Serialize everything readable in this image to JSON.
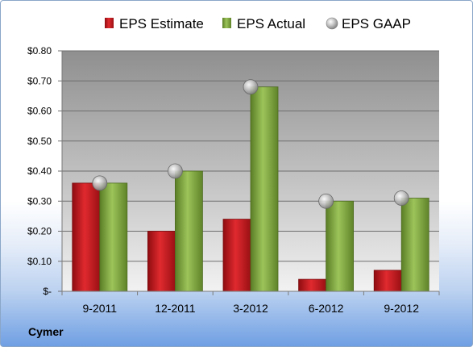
{
  "company": "Cymer",
  "colors": {
    "estimate": "#d9232a",
    "actual": "#8cb548",
    "gaap": "#b8b8b8"
  },
  "chart_data": {
    "type": "bar",
    "categories": [
      "9-2011",
      "12-2011",
      "3-2012",
      "6-2012",
      "9-2012"
    ],
    "series": [
      {
        "name": "EPS Estimate",
        "type": "bar",
        "values": [
          0.36,
          0.2,
          0.24,
          0.04,
          0.07
        ]
      },
      {
        "name": "EPS Actual",
        "type": "bar",
        "values": [
          0.36,
          0.4,
          0.68,
          0.3,
          0.31
        ]
      },
      {
        "name": "EPS GAAP",
        "type": "scatter",
        "values": [
          0.36,
          0.4,
          0.68,
          0.3,
          0.31
        ]
      }
    ],
    "ylim": [
      0,
      0.8
    ],
    "yticks": [
      0,
      0.1,
      0.2,
      0.3,
      0.4,
      0.5,
      0.6,
      0.7,
      0.8
    ],
    "ytick_labels": [
      "$-",
      "$0.10",
      "$0.20",
      "$0.30",
      "$0.40",
      "$0.50",
      "$0.60",
      "$0.70",
      "$0.80"
    ],
    "grid": true,
    "legend_position": "top"
  }
}
